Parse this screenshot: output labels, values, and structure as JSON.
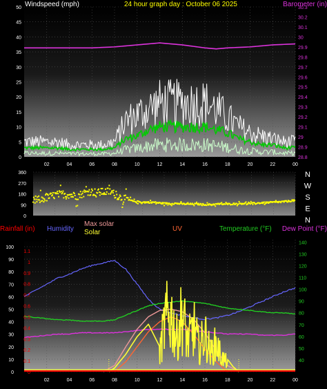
{
  "header": {
    "left_label": "Windspeed (mph)",
    "center_label": "24 hour graph day : October 06 2025",
    "right_label": "Barometer (in)"
  },
  "bottom_header": {
    "rain": "Rainfall (in)",
    "humidity": "Humidity",
    "max_solar": "Max solar",
    "solar": "Solar",
    "uv": "UV",
    "temperature": "Temperature (°F)",
    "dew_point": "Dew Point (°F)"
  },
  "direction_labels": [
    "N",
    "W",
    "S",
    "E",
    "N"
  ],
  "colors": {
    "wind_avg": "#ffffff",
    "wind_gust": "#00cc00",
    "wind_light": "#ccffcc",
    "barometer": "#dd33dd",
    "direction": "#ffff00",
    "humidity": "#6666ff",
    "max_solar": "#ee9999",
    "solar": "#ffff33",
    "uv": "#ff6633",
    "temperature": "#22cc22",
    "dew_point": "#dd33dd",
    "rain": "#ff0000"
  },
  "chart_data": [
    {
      "type": "line",
      "title": "24 hour graph day : October 06 2025",
      "x_ticks": [
        "02",
        "04",
        "06",
        "08",
        "10",
        "12",
        "14",
        "16",
        "18",
        "20",
        "22",
        "00"
      ],
      "y_left": {
        "label": "Windspeed (mph)",
        "range": [
          0,
          50
        ],
        "ticks": [
          "0",
          "5",
          "10",
          "15",
          "20",
          "25",
          "30",
          "35",
          "40",
          "45",
          "50"
        ]
      },
      "y_right": {
        "label": "Barometer (in)",
        "range": [
          28.8,
          30.3
        ],
        "ticks": [
          "28.8",
          "28.9",
          "29",
          "29.1",
          "29.2",
          "29.3",
          "29.4",
          "29.5",
          "29.6",
          "29.7",
          "29.8",
          "29.9",
          "30",
          "30.1",
          "30.2",
          "30.3"
        ]
      },
      "series": [
        {
          "name": "Barometer (in)",
          "axis": "right",
          "x": [
            0,
            2,
            4,
            6,
            8,
            10,
            12,
            14,
            16,
            17,
            18,
            20,
            22,
            24
          ],
          "values": [
            29.89,
            29.89,
            29.89,
            29.89,
            29.9,
            29.92,
            29.94,
            29.92,
            29.89,
            29.88,
            29.89,
            29.9,
            29.92,
            29.93
          ]
        },
        {
          "name": "Windspeed (mph)",
          "axis": "left",
          "x": [
            0,
            1,
            2,
            3,
            4,
            5,
            6,
            7,
            8,
            9,
            10,
            11,
            12,
            13,
            14,
            15,
            16,
            17,
            18,
            19,
            20,
            21,
            22,
            23,
            24
          ],
          "values": [
            3,
            3,
            3,
            3,
            2.5,
            2.5,
            2.5,
            2.5,
            3,
            6,
            7,
            9,
            10,
            10,
            10,
            10,
            10,
            9,
            8,
            6,
            5,
            4,
            4,
            3,
            3
          ]
        },
        {
          "name": "Wind gust (mph)",
          "axis": "left",
          "x": [
            0,
            1,
            2,
            3,
            4,
            5,
            6,
            7,
            8,
            9,
            10,
            11,
            12,
            13,
            14,
            15,
            16,
            17,
            18,
            19,
            20,
            21,
            22,
            23,
            24
          ],
          "values": [
            5,
            5,
            5,
            5,
            4,
            4,
            4,
            4,
            5,
            12,
            14,
            16,
            18,
            18,
            18,
            18,
            18,
            16,
            13,
            10,
            8,
            7,
            6,
            5,
            5
          ]
        }
      ]
    },
    {
      "type": "scatter",
      "title": "",
      "y_range": [
        0,
        360
      ],
      "y_ticks": [
        "0",
        "90",
        "180",
        "270",
        "360"
      ],
      "x_ticks": [
        "02",
        "04",
        "06",
        "08",
        "10",
        "12",
        "14",
        "16",
        "18",
        "20",
        "22",
        "00"
      ],
      "series": [
        {
          "name": "Wind direction",
          "axis": "left",
          "x": [
            0,
            1,
            2,
            3,
            4,
            5,
            6,
            7,
            8,
            9,
            10,
            11,
            12,
            13,
            14,
            15,
            16,
            17,
            18,
            19,
            20,
            21,
            22,
            23,
            24
          ],
          "values": [
            120,
            140,
            170,
            180,
            160,
            200,
            190,
            200,
            150,
            120,
            110,
            110,
            100,
            100,
            95,
            95,
            90,
            95,
            95,
            100,
            100,
            105,
            110,
            115,
            125
          ]
        }
      ]
    },
    {
      "type": "line",
      "title": "",
      "x_ticks": [
        "02",
        "04",
        "06",
        "08",
        "10",
        "12",
        "14",
        "16",
        "18",
        "20",
        "22",
        "00"
      ],
      "y_rain": {
        "label": "Rainfall (in)",
        "range": [
          0,
          1.2
        ],
        "ticks": [
          "0",
          "0.1",
          "0.2",
          "0.3",
          "0.4",
          "0.5",
          "0.6",
          "0.7",
          "0.8",
          "0.9",
          "1",
          "1.1"
        ]
      },
      "y_humidity": {
        "label": "Humidity",
        "range": [
          0,
          100
        ],
        "ticks": [
          "0",
          "10",
          "20",
          "30",
          "40",
          "50",
          "60",
          "70",
          "80",
          "90",
          "100"
        ]
      },
      "y_temperature": {
        "label": "Temperature (°F)",
        "range": [
          30,
          142
        ],
        "ticks": [
          "40",
          "50",
          "60",
          "70",
          "80",
          "90",
          "100",
          "110",
          "120",
          "130",
          "140"
        ]
      },
      "series": [
        {
          "name": "Humidity",
          "axis": "humidity",
          "x": [
            0,
            1,
            2,
            3,
            4,
            5,
            6,
            7,
            8,
            9,
            10,
            11,
            12,
            13,
            14,
            15,
            16,
            17,
            18,
            19,
            20,
            21,
            22,
            23,
            24
          ],
          "values": [
            60,
            65,
            70,
            75,
            78,
            82,
            85,
            87,
            89,
            82,
            70,
            58,
            50,
            47,
            45,
            43,
            42,
            43,
            45,
            48,
            52,
            56,
            60,
            64,
            67
          ]
        },
        {
          "name": "Temperature (°F)",
          "axis": "temperature",
          "x": [
            0,
            1,
            2,
            3,
            4,
            5,
            6,
            7,
            8,
            9,
            10,
            11,
            12,
            13,
            14,
            15,
            16,
            17,
            18,
            19,
            20,
            21,
            22,
            23,
            24
          ],
          "values": [
            77,
            76,
            75,
            74,
            74,
            73,
            73,
            73,
            74,
            78,
            82,
            86,
            88,
            89,
            90,
            89,
            88,
            86,
            84,
            83,
            82,
            81,
            80,
            80,
            79
          ]
        },
        {
          "name": "Dew Point (°F)",
          "axis": "temperature",
          "x": [
            0,
            1,
            2,
            3,
            4,
            5,
            6,
            7,
            8,
            9,
            10,
            11,
            12,
            13,
            14,
            15,
            16,
            17,
            18,
            19,
            20,
            21,
            22,
            23,
            24
          ],
          "values": [
            59,
            60,
            61,
            62,
            62,
            63,
            63,
            63,
            63,
            64,
            65,
            66,
            66,
            66,
            66,
            65,
            64,
            63,
            62,
            62,
            62,
            61,
            61,
            61,
            62
          ]
        },
        {
          "name": "Max solar",
          "axis": "humidity",
          "x": [
            7,
            8,
            9,
            10,
            11,
            12,
            13,
            14,
            15,
            16,
            17,
            18,
            19
          ],
          "values": [
            0,
            5,
            20,
            34,
            44,
            49,
            50,
            48,
            42,
            31,
            17,
            5,
            0
          ]
        },
        {
          "name": "Solar",
          "axis": "humidity",
          "x": [
            7.5,
            8,
            9,
            10,
            11,
            12,
            12.5,
            13,
            13.5,
            14,
            14.5,
            15,
            15.5,
            16,
            16.5,
            17,
            17.5,
            18,
            18.5,
            19
          ],
          "values": [
            0,
            3,
            14,
            28,
            38,
            20,
            55,
            60,
            35,
            62,
            30,
            48,
            25,
            40,
            20,
            30,
            15,
            10,
            4,
            0
          ]
        },
        {
          "name": "UV",
          "axis": "humidity",
          "x": [
            8,
            9,
            10,
            11,
            12,
            13,
            14,
            15,
            16,
            17,
            18
          ],
          "values": [
            0,
            8,
            20,
            32,
            40,
            44,
            40,
            30,
            18,
            8,
            0
          ]
        },
        {
          "name": "Rainfall (in)",
          "axis": "rain",
          "x": [
            0,
            24
          ],
          "values": [
            0,
            0
          ]
        }
      ]
    }
  ]
}
